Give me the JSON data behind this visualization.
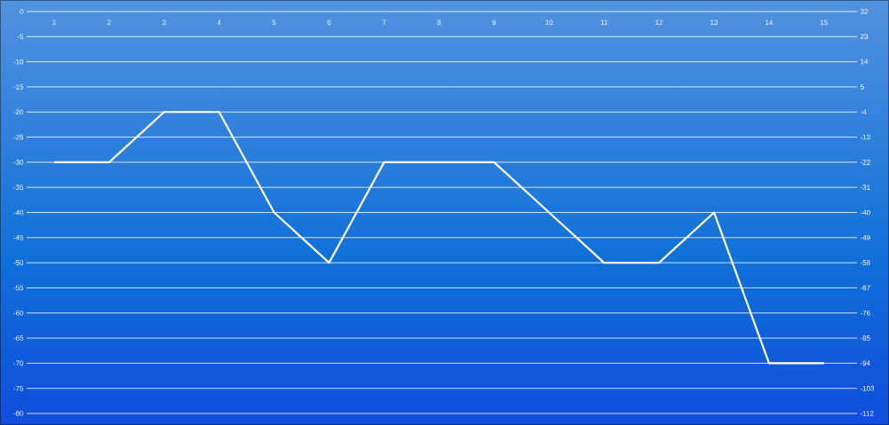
{
  "chart_data": {
    "type": "line",
    "categories": [
      "1",
      "2",
      "3",
      "4",
      "5",
      "6",
      "7",
      "8",
      "9",
      "10",
      "11",
      "12",
      "13",
      "14",
      "15"
    ],
    "series": [
      {
        "color": "#ffffff",
        "values": [
          -30,
          -30,
          -20,
          -20,
          -40,
          -50,
          -30,
          -30,
          -30,
          -40,
          -50,
          -50,
          -40,
          -70,
          -70
        ]
      }
    ],
    "ylim": [
      -80,
      0
    ],
    "yticks": [
      0,
      -5,
      -10,
      -15,
      -20,
      -25,
      -30,
      -35,
      -40,
      -45,
      -50,
      -55,
      -60,
      -65,
      -70,
      -75,
      -80
    ],
    "y2lim": [
      -112,
      32
    ],
    "y2ticks": [
      32,
      23,
      14,
      5,
      -4,
      -13,
      -22,
      -31,
      -40,
      -49,
      -58,
      -67,
      -76,
      -85,
      -94,
      -103,
      -112
    ],
    "grid": "y",
    "marker": "none",
    "line_style": "solid"
  }
}
